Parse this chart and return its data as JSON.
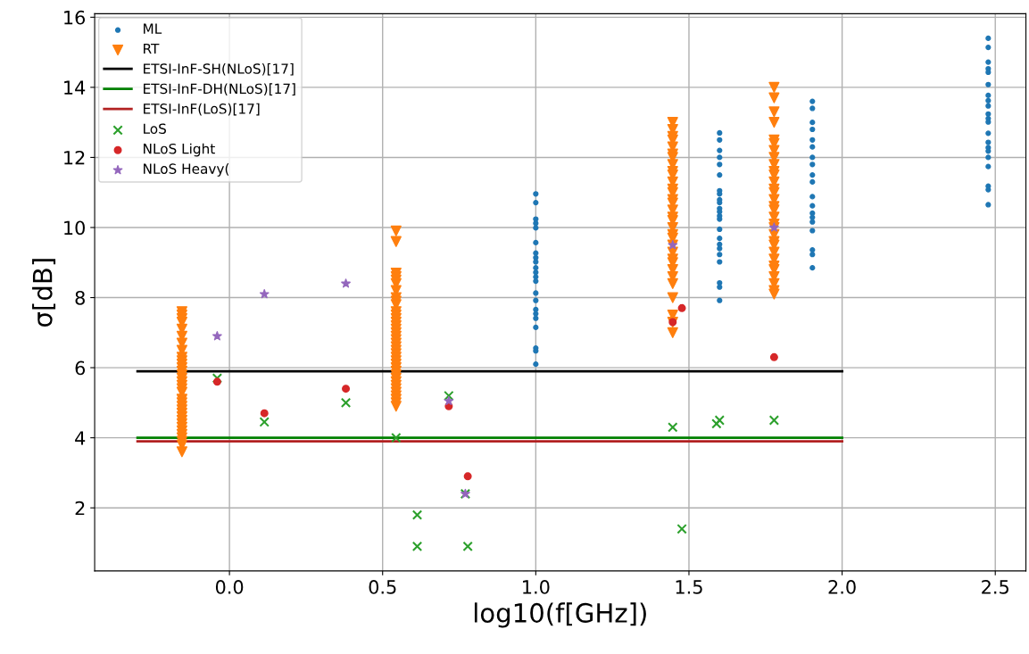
{
  "chart_data": {
    "type": "scatter",
    "xlabel": "log10(f[GHz])",
    "ylabel": "σ[dB]",
    "xlim": [
      -0.44,
      2.6
    ],
    "xticks": [
      {
        "value": 0,
        "label": "0.0"
      },
      {
        "value": 0.5,
        "label": "0.5"
      },
      {
        "value": 1,
        "label": "1.0"
      },
      {
        "value": 1.5,
        "label": "1.5"
      },
      {
        "value": 2,
        "label": "2.0"
      },
      {
        "value": 2.5,
        "label": "2.5"
      }
    ],
    "ylim": [
      0.2,
      16.1
    ],
    "yticks": [
      2,
      4,
      6,
      8,
      10,
      12,
      14,
      16
    ],
    "grid": true,
    "legend": "top left",
    "series": [
      {
        "name": "ML",
        "marker": "circle",
        "color": "#1f77b4",
        "x": [
          1.0,
          1.0,
          1.0,
          1.0,
          1.0,
          1.0,
          1.0,
          1.0,
          1.0,
          1.0,
          1.0,
          1.0,
          1.0,
          1.0,
          1.0,
          1.0,
          1.0,
          1.0,
          1.0,
          1.0,
          1.0,
          1.0,
          1.6,
          1.6,
          1.6,
          1.6,
          1.6,
          1.6,
          1.6,
          1.6,
          1.6,
          1.6,
          1.6,
          1.6,
          1.6,
          1.6,
          1.6,
          1.6,
          1.6,
          1.6,
          1.6,
          1.6,
          1.6,
          1.6,
          1.6,
          1.903,
          1.903,
          1.903,
          1.903,
          1.903,
          1.903,
          1.903,
          1.903,
          1.903,
          1.903,
          1.903,
          1.903,
          1.903,
          1.903,
          1.903,
          1.903,
          1.903,
          1.903,
          1.903,
          2.477,
          2.477,
          2.477,
          2.477,
          2.477,
          2.477,
          2.477,
          2.477,
          2.477,
          2.477,
          2.477,
          2.477,
          2.477,
          2.477,
          2.477,
          2.477,
          2.477,
          2.477,
          2.477,
          2.477,
          2.477
        ],
        "values": [
          10.96,
          10.71,
          10.24,
          10.12,
          9.99,
          9.57,
          9.27,
          9.14,
          9.02,
          8.85,
          8.72,
          8.59,
          8.47,
          8.13,
          7.92,
          7.66,
          7.54,
          7.41,
          7.15,
          6.56,
          6.48,
          6.1,
          12.7,
          12.5,
          12.2,
          12.0,
          11.8,
          11.5,
          11.05,
          10.96,
          10.79,
          10.71,
          10.54,
          10.45,
          10.33,
          10.24,
          9.95,
          9.69,
          9.52,
          9.4,
          9.23,
          9.02,
          8.42,
          8.3,
          7.92,
          13.6,
          13.4,
          13.0,
          12.8,
          12.5,
          12.3,
          12.0,
          11.8,
          11.5,
          11.3,
          10.88,
          10.62,
          10.41,
          10.29,
          10.16,
          9.91,
          9.36,
          9.23,
          8.85,
          15.4,
          15.14,
          14.72,
          14.53,
          14.43,
          14.08,
          13.77,
          13.62,
          13.47,
          13.24,
          13.11,
          13.01,
          12.69,
          12.43,
          12.28,
          12.18,
          12.0,
          11.74,
          11.18,
          11.08,
          10.65
        ]
      },
      {
        "name": "RT",
        "marker": "triangle",
        "color": "#ff7f0e",
        "x": [
          -0.155,
          -0.155,
          -0.155,
          -0.155,
          -0.155,
          -0.155,
          -0.155,
          -0.155,
          -0.155,
          -0.155,
          -0.155,
          -0.155,
          -0.155,
          -0.155,
          -0.155,
          -0.155,
          -0.155,
          -0.155,
          -0.155,
          -0.155,
          -0.155,
          -0.155,
          -0.155,
          -0.155,
          -0.155,
          -0.155,
          -0.155,
          -0.155,
          -0.155,
          -0.155,
          -0.155,
          -0.155,
          -0.155,
          -0.155,
          0.544,
          0.544,
          0.544,
          0.544,
          0.544,
          0.544,
          0.544,
          0.544,
          0.544,
          0.544,
          0.544,
          0.544,
          0.544,
          0.544,
          0.544,
          0.544,
          0.544,
          0.544,
          0.544,
          0.544,
          0.544,
          0.544,
          0.544,
          0.544,
          0.544,
          0.544,
          0.544,
          0.544,
          0.544,
          0.544,
          0.544,
          0.544,
          0.544,
          0.544,
          0.544,
          0.544,
          0.544,
          0.544,
          1.447,
          1.447,
          1.447,
          1.447,
          1.447,
          1.447,
          1.447,
          1.447,
          1.447,
          1.447,
          1.447,
          1.447,
          1.447,
          1.447,
          1.447,
          1.447,
          1.447,
          1.447,
          1.447,
          1.447,
          1.447,
          1.447,
          1.447,
          1.447,
          1.447,
          1.447,
          1.447,
          1.447,
          1.447,
          1.447,
          1.447,
          1.447,
          1.778,
          1.778,
          1.778,
          1.778,
          1.778,
          1.778,
          1.778,
          1.778,
          1.778,
          1.778,
          1.778,
          1.778,
          1.778,
          1.778,
          1.778,
          1.778,
          1.778,
          1.778,
          1.778,
          1.778,
          1.778,
          1.778,
          1.778,
          1.778,
          1.778,
          1.778,
          1.778,
          1.778,
          1.778,
          1.778,
          1.778
        ],
        "values": [
          7.6,
          7.5,
          7.4,
          7.3,
          7.1,
          6.9,
          6.7,
          6.5,
          6.3,
          6.2,
          6.1,
          6.0,
          5.9,
          5.8,
          5.7,
          5.6,
          5.5,
          5.4,
          5.3,
          5.1,
          5.0,
          4.9,
          4.8,
          4.7,
          4.6,
          4.5,
          4.4,
          4.3,
          4.2,
          4.1,
          4.0,
          3.9,
          3.8,
          3.6,
          9.9,
          9.6,
          8.7,
          8.6,
          8.5,
          8.4,
          8.2,
          8.0,
          7.9,
          7.8,
          7.6,
          7.5,
          7.4,
          7.3,
          7.2,
          7.1,
          7.0,
          6.9,
          6.8,
          6.7,
          6.6,
          6.5,
          6.4,
          6.3,
          6.2,
          6.1,
          6.0,
          5.9,
          5.8,
          5.7,
          5.6,
          5.5,
          5.4,
          5.3,
          5.2,
          5.1,
          5.0,
          4.9,
          13.0,
          12.8,
          12.6,
          12.5,
          12.3,
          12.1,
          12.0,
          11.8,
          11.6,
          11.5,
          11.3,
          11.1,
          11.0,
          10.8,
          10.7,
          10.5,
          10.3,
          10.2,
          10.0,
          9.8,
          9.7,
          9.5,
          9.3,
          9.1,
          9.0,
          8.8,
          8.6,
          8.4,
          8.0,
          7.5,
          7.3,
          7.0,
          14.0,
          13.7,
          13.3,
          13.0,
          12.5,
          12.4,
          12.2,
          12.0,
          11.8,
          11.6,
          11.5,
          11.3,
          11.1,
          11.0,
          10.8,
          10.6,
          10.5,
          10.3,
          10.1,
          10.0,
          9.8,
          9.6,
          9.5,
          9.3,
          9.1,
          8.9,
          8.8,
          8.6,
          8.4,
          8.2,
          8.1
        ]
      },
      {
        "name": "ETSI-InF-SH(NLoS)[17]",
        "type": "line",
        "marker": "none",
        "color": "#000000",
        "x": [
          -0.3,
          2.0
        ],
        "values": [
          5.9,
          5.9
        ]
      },
      {
        "name": "ETSI-InF-DH(NLoS)[17]",
        "type": "line",
        "marker": "none",
        "color": "#008000",
        "x": [
          -0.3,
          2.0
        ],
        "values": [
          4.0,
          4.0
        ]
      },
      {
        "name": "ETSI-InF(LoS)[17]",
        "type": "line",
        "marker": "none",
        "color": "#b22222",
        "x": [
          -0.3,
          2.0
        ],
        "values": [
          3.9,
          3.9
        ]
      },
      {
        "name": "LoS",
        "marker": "cross",
        "color": "#2ca02c",
        "x": [
          -0.04,
          0.114,
          0.38,
          0.544,
          0.613,
          0.613,
          0.716,
          0.77,
          0.778,
          1.447,
          1.477,
          1.59,
          1.6,
          1.778
        ],
        "values": [
          5.7,
          4.45,
          5.0,
          4.0,
          1.8,
          0.9,
          5.2,
          2.4,
          0.9,
          4.3,
          1.4,
          4.4,
          4.5,
          4.5
        ]
      },
      {
        "name": "NLoS Light",
        "marker": "circle",
        "color": "#d62728",
        "x": [
          -0.04,
          0.114,
          0.38,
          0.716,
          0.778,
          1.447,
          1.477,
          1.778
        ],
        "values": [
          5.6,
          4.7,
          5.4,
          4.9,
          2.9,
          7.3,
          7.7,
          6.3
        ]
      },
      {
        "name": "NLoS Heavy(",
        "marker": "star",
        "color": "#9467bd",
        "x": [
          -0.04,
          0.114,
          0.38,
          0.716,
          0.77,
          1.447,
          1.778
        ],
        "values": [
          6.9,
          8.1,
          8.4,
          5.05,
          2.4,
          9.5,
          10.0
        ]
      }
    ]
  }
}
